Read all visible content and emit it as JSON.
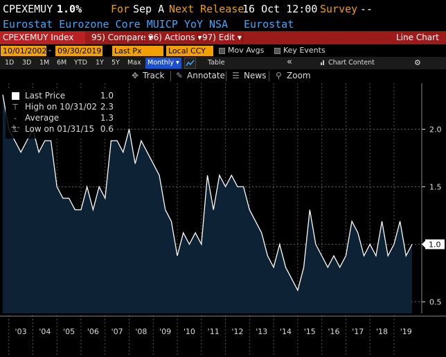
{
  "header": {
    "ticker": "CPEXEMUY",
    "last_value": "1.0%",
    "for_label": "For",
    "for_value": "Sep A",
    "next_release_label": "Next Release",
    "next_release_value": "16 Oct 12:00",
    "survey_label": "Survey",
    "survey_value": "--",
    "description": "Eurostat Eurozone Core MUICP YoY NSA",
    "source": "Eurostat"
  },
  "toolbar": {
    "security": "CPEXEMUY Index",
    "compare": "95) Compare ▾",
    "actions": "96) Actions ▾",
    "edit": "97) Edit ▾",
    "chart_type": "Line Chart"
  },
  "range": {
    "start_date": "10/01/2002",
    "end_date": "09/30/2019",
    "field": "Last Px",
    "currency": "Local CCY",
    "mov_avgs": "Mov Avgs",
    "key_events": "Key Events"
  },
  "periods": {
    "items": [
      "1D",
      "3D",
      "1M",
      "6M",
      "YTD",
      "1Y",
      "5Y",
      "Max"
    ],
    "frequency": "Monthly ▾",
    "table": "Table",
    "chart_content": "Chart Content",
    "collapse": "«"
  },
  "tools": {
    "track": "Track",
    "annotate": "Annotate",
    "news": "News",
    "zoom": "Zoom"
  },
  "legend": {
    "last_price_label": "Last Price",
    "last_price_value": "1.0",
    "high_label": "High on 10/31/02",
    "high_value": "2.3",
    "average_label": "Average",
    "average_value": "1.3",
    "low_label": "Low on 01/31/15",
    "low_value": "0.6"
  },
  "colors": {
    "line": "#ffffff",
    "fill": "#0e2236",
    "toolbar": "#9b1b1b",
    "highlight": "#f0a000",
    "header_orange": "#f0a000",
    "header_blue": "#3fa7ff"
  },
  "chart_data": {
    "type": "area",
    "title": "",
    "xlabel": "",
    "ylabel": "",
    "ylim": [
      0.4,
      2.4
    ],
    "y_ticks": [
      0.5,
      1.0,
      1.5,
      2.0
    ],
    "x_tick_labels": [
      "'03",
      "'04",
      "'05",
      "'06",
      "'07",
      "'08",
      "'09",
      "'10",
      "'11",
      "'12",
      "'13",
      "'14",
      "'15",
      "'16",
      "'17",
      "'18",
      "'19"
    ],
    "x_start_year": 2002.75,
    "x_end_year": 2019.75,
    "last_value_label": "1.0",
    "series": [
      {
        "points": [
          [
            2002.75,
            2.3
          ],
          [
            2003.0,
            2.0
          ],
          [
            2003.25,
            1.9
          ],
          [
            2003.5,
            1.8
          ],
          [
            2003.75,
            1.9
          ],
          [
            2004.0,
            2.0
          ],
          [
            2004.25,
            1.8
          ],
          [
            2004.5,
            1.9
          ],
          [
            2004.75,
            1.9
          ],
          [
            2005.0,
            1.5
          ],
          [
            2005.25,
            1.4
          ],
          [
            2005.5,
            1.4
          ],
          [
            2005.75,
            1.3
          ],
          [
            2006.0,
            1.3
          ],
          [
            2006.25,
            1.5
          ],
          [
            2006.5,
            1.3
          ],
          [
            2006.75,
            1.5
          ],
          [
            2007.0,
            1.4
          ],
          [
            2007.25,
            1.9
          ],
          [
            2007.5,
            1.9
          ],
          [
            2007.75,
            1.8
          ],
          [
            2008.0,
            2.0
          ],
          [
            2008.25,
            1.7
          ],
          [
            2008.5,
            1.9
          ],
          [
            2008.75,
            1.8
          ],
          [
            2009.0,
            1.7
          ],
          [
            2009.25,
            1.6
          ],
          [
            2009.5,
            1.3
          ],
          [
            2009.75,
            1.2
          ],
          [
            2010.0,
            0.9
          ],
          [
            2010.25,
            1.1
          ],
          [
            2010.5,
            1.0
          ],
          [
            2010.75,
            1.1
          ],
          [
            2011.0,
            1.0
          ],
          [
            2011.25,
            1.6
          ],
          [
            2011.5,
            1.3
          ],
          [
            2011.75,
            1.6
          ],
          [
            2012.0,
            1.5
          ],
          [
            2012.25,
            1.6
          ],
          [
            2012.5,
            1.5
          ],
          [
            2012.75,
            1.5
          ],
          [
            2013.0,
            1.3
          ],
          [
            2013.25,
            1.2
          ],
          [
            2013.5,
            1.1
          ],
          [
            2013.75,
            0.9
          ],
          [
            2014.0,
            0.8
          ],
          [
            2014.25,
            1.0
          ],
          [
            2014.5,
            0.8
          ],
          [
            2014.75,
            0.7
          ],
          [
            2015.0,
            0.6
          ],
          [
            2015.25,
            0.8
          ],
          [
            2015.5,
            1.3
          ],
          [
            2015.75,
            1.0
          ],
          [
            2016.0,
            0.9
          ],
          [
            2016.25,
            0.8
          ],
          [
            2016.5,
            0.9
          ],
          [
            2016.75,
            0.8
          ],
          [
            2017.0,
            0.9
          ],
          [
            2017.25,
            1.2
          ],
          [
            2017.5,
            1.1
          ],
          [
            2017.75,
            0.9
          ],
          [
            2018.0,
            1.0
          ],
          [
            2018.25,
            0.9
          ],
          [
            2018.5,
            1.2
          ],
          [
            2018.75,
            0.9
          ],
          [
            2019.0,
            1.0
          ],
          [
            2019.25,
            1.2
          ],
          [
            2019.5,
            0.9
          ],
          [
            2019.75,
            1.0
          ]
        ]
      }
    ]
  }
}
